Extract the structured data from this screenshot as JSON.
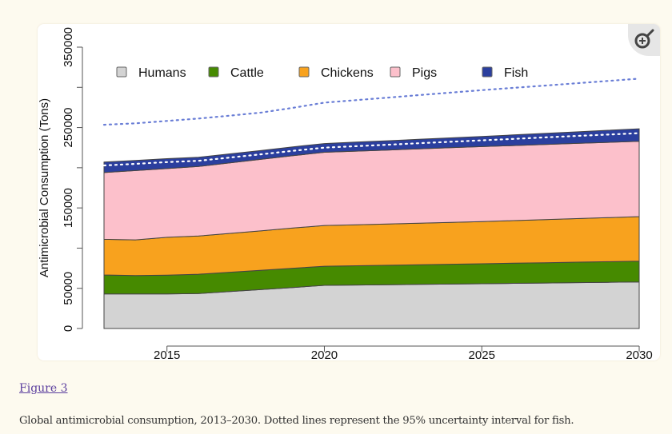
{
  "figure": {
    "link_label": "Figure 3",
    "caption": "Global antimicrobial consumption, 2013–2030. Dotted lines represent the 95% uncertainty interval for fish.",
    "zoom_icon": "zoom-in-magnifier-icon"
  },
  "chart_data": {
    "type": "area",
    "stacked": true,
    "title": "",
    "xlabel": "",
    "ylabel": "Antimicrobial Consumption (Tons)",
    "xlim": [
      2013,
      2030
    ],
    "ylim": [
      0,
      350000
    ],
    "x_ticks": [
      2015,
      2020,
      2025,
      2030
    ],
    "x_tick_labels": [
      "2015",
      "2020",
      "2025",
      "2030"
    ],
    "y_ticks": [
      0,
      50000,
      100000,
      150000,
      200000,
      250000,
      300000,
      350000
    ],
    "y_tick_labels": [
      "0",
      "50000",
      "",
      "150000",
      "",
      "250000",
      "",
      "350000"
    ],
    "grid": false,
    "legend_position": "top",
    "x": [
      2013,
      2014,
      2015,
      2016,
      2017,
      2018,
      2019,
      2020,
      2021,
      2022,
      2023,
      2024,
      2025,
      2026,
      2027,
      2028,
      2029,
      2030
    ],
    "series": [
      {
        "name": "Humans",
        "color": "#d3d3d3",
        "values": [
          43000,
          43000,
          43000,
          43500,
          46000,
          48500,
          51000,
          53700,
          54100,
          54500,
          54900,
          55300,
          55700,
          56200,
          56600,
          57100,
          57500,
          58000
        ]
      },
      {
        "name": "Cattle",
        "color": "#468a00",
        "values": [
          23600,
          22800,
          23300,
          24000,
          24000,
          24000,
          24000,
          23800,
          24000,
          24200,
          24400,
          24600,
          24800,
          25000,
          25200,
          25400,
          25600,
          25800
        ]
      },
      {
        "name": "Chickens",
        "color": "#f8a21e",
        "values": [
          44400,
          44500,
          47200,
          47500,
          48300,
          49000,
          50000,
          50700,
          51000,
          51400,
          51700,
          52100,
          52400,
          53000,
          53600,
          54200,
          54800,
          55400
        ]
      },
      {
        "name": "Pigs",
        "color": "#fcc0cb",
        "values": [
          83000,
          86200,
          85500,
          86500,
          87700,
          89000,
          90000,
          91000,
          91500,
          91900,
          92500,
          92900,
          93400,
          93400,
          93500,
          93600,
          93700,
          93700
        ]
      },
      {
        "name": "Fish",
        "color": "#2b3f9e",
        "values": [
          13000,
          12500,
          12300,
          11500,
          11300,
          11000,
          11000,
          10900,
          11300,
          11600,
          11900,
          12200,
          12600,
          13200,
          13800,
          14300,
          15000,
          15600
        ]
      }
    ],
    "fish_uncertainty_total": {
      "upper": [
        253500,
        255200,
        258200,
        261200,
        264800,
        268700,
        274500,
        281000,
        284100,
        287200,
        290300,
        293400,
        296500,
        299400,
        302200,
        305100,
        307900,
        310800
      ],
      "lower": [
        202800,
        204800,
        207000,
        208600,
        212700,
        216800,
        221000,
        225000,
        226800,
        228600,
        230500,
        232300,
        234100,
        235900,
        237700,
        239500,
        241200,
        243000
      ]
    }
  }
}
